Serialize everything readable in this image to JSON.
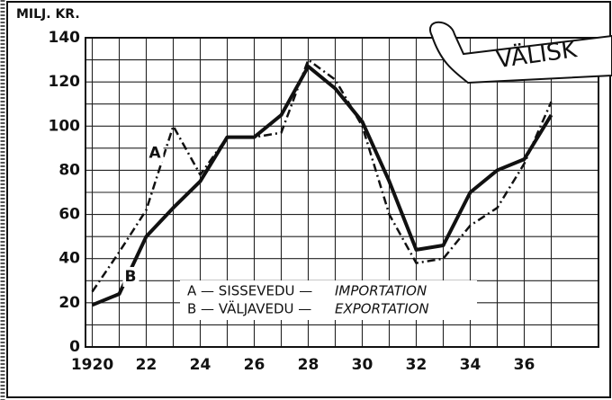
{
  "chart_data": {
    "type": "line",
    "y_label": "MILJ. KR.",
    "banner": "VÄLISK",
    "x": [
      1920,
      1921,
      1922,
      1923,
      1924,
      1925,
      1926,
      1927,
      1928,
      1929,
      1930,
      1931,
      1932,
      1933,
      1934,
      1935,
      1936,
      1937
    ],
    "series": [
      {
        "name": "A — SISSEVEDU —",
        "name_en": "IMPORTATION",
        "tag": "A",
        "color": "#111",
        "dash": true,
        "values": [
          25,
          43,
          62,
          100,
          78,
          95,
          95,
          97,
          130,
          121,
          100,
          60,
          38,
          40,
          55,
          63,
          83,
          111
        ]
      },
      {
        "name": "B — VÄLJAVEDU —",
        "name_en": "EXPORTATION",
        "tag": "B",
        "color": "#111",
        "dash": false,
        "values": [
          19,
          24,
          50,
          63,
          75,
          95,
          95,
          105,
          127,
          117,
          102,
          75,
          44,
          46,
          70,
          80,
          85,
          105
        ]
      }
    ],
    "xlim": [
      1919.75,
      1938.75
    ],
    "xticks": [
      {
        "value": 1920,
        "label": "1920"
      },
      {
        "value": 1922,
        "label": "22"
      },
      {
        "value": 1924,
        "label": "24"
      },
      {
        "value": 1926,
        "label": "26"
      },
      {
        "value": 1928,
        "label": "28"
      },
      {
        "value": 1930,
        "label": "30"
      },
      {
        "value": 1932,
        "label": "32"
      },
      {
        "value": 1934,
        "label": "34"
      },
      {
        "value": 1936,
        "label": "36"
      }
    ],
    "ylim": [
      0,
      140
    ],
    "yticks": [
      0,
      20,
      40,
      60,
      80,
      100,
      120,
      140
    ],
    "grid": true
  }
}
